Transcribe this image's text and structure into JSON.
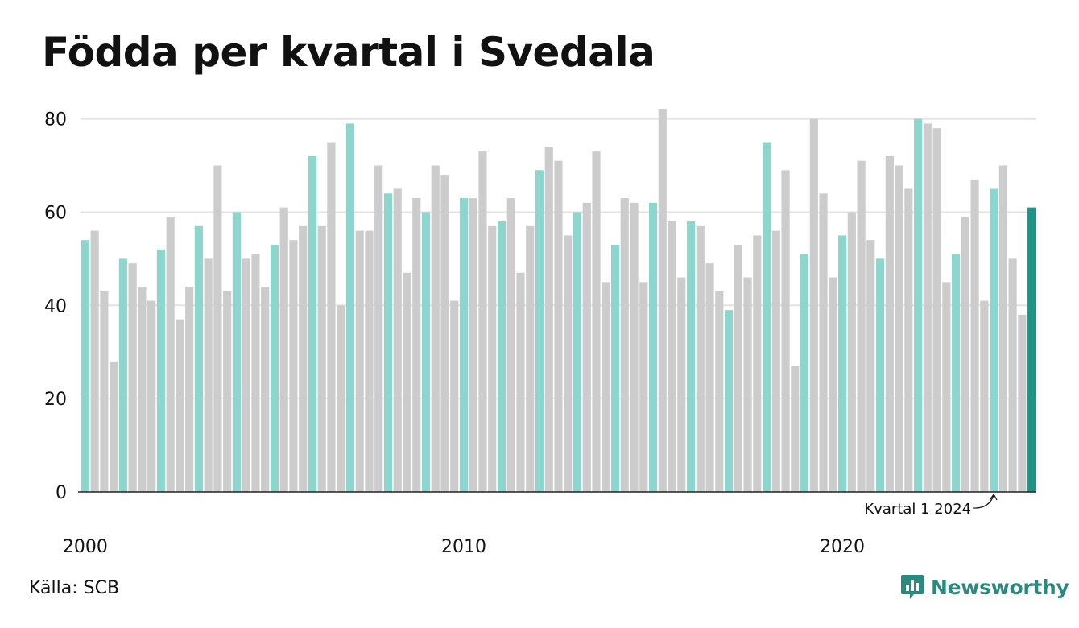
{
  "chart_data": {
    "type": "bar",
    "title": "Födda per kvartal i Svedala",
    "xlabel": "",
    "ylabel": "",
    "ylim": [
      0,
      82
    ],
    "yticks": [
      0,
      20,
      40,
      60,
      80
    ],
    "xtick_labels": [
      {
        "label": "2000",
        "year": 2000
      },
      {
        "label": "2010",
        "year": 2010
      },
      {
        "label": "2020",
        "year": 2020
      }
    ],
    "start_year": 2000,
    "grid": true,
    "legend": "none",
    "colors": {
      "quarter1": "#8dd6ce",
      "other_quarters": "#cccccc",
      "latest": "#1f9486",
      "grid": "#e3e3e3",
      "axis": "#222222"
    },
    "values": [
      54,
      56,
      43,
      28,
      50,
      49,
      44,
      41,
      52,
      59,
      37,
      44,
      57,
      50,
      70,
      43,
      60,
      50,
      51,
      44,
      53,
      61,
      54,
      57,
      72,
      57,
      75,
      40,
      79,
      56,
      56,
      70,
      64,
      65,
      47,
      63,
      60,
      70,
      68,
      41,
      63,
      63,
      73,
      57,
      58,
      63,
      47,
      57,
      69,
      74,
      71,
      55,
      60,
      62,
      73,
      45,
      53,
      63,
      62,
      45,
      62,
      82,
      58,
      46,
      58,
      57,
      49,
      43,
      39,
      53,
      46,
      55,
      75,
      56,
      69,
      27,
      51,
      80,
      64,
      46,
      55,
      60,
      71,
      54,
      50,
      72,
      70,
      65,
      80,
      79,
      78,
      45,
      51,
      59,
      67,
      41,
      65,
      70,
      50,
      38,
      61
    ],
    "annotation": {
      "text": "Kvartal 1 2024",
      "index": 96
    }
  },
  "footer": {
    "source": "Källa: SCB",
    "brand": "Newsworthy",
    "brand_icon": "newsworthy-logo-icon"
  }
}
